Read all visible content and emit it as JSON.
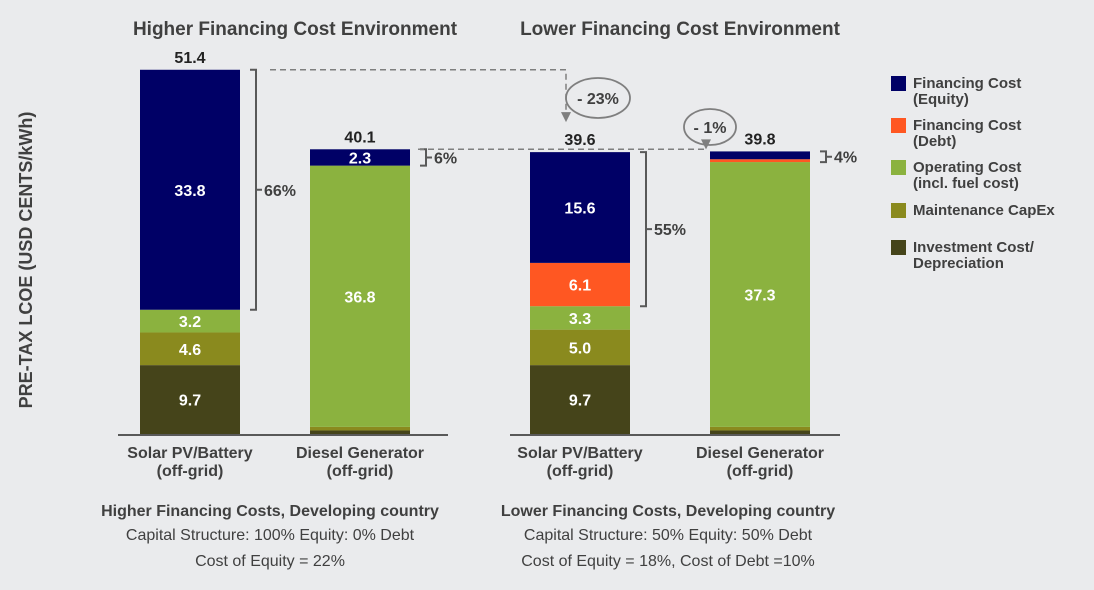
{
  "chart_data": {
    "type": "bar",
    "stacked": true,
    "ylabel": "PRE-TAX LCOE (USD CENTS/kWh)",
    "ylim": [
      0,
      55
    ],
    "grid": false,
    "legend_position": "right",
    "legend": [
      {
        "key": "equity",
        "label": [
          "Financing Cost",
          "(Equity)"
        ],
        "color": "#000066"
      },
      {
        "key": "debt",
        "label": [
          "Financing Cost",
          "(Debt)"
        ],
        "color": "#ff5722"
      },
      {
        "key": "operating",
        "label": [
          "Operating Cost",
          "(incl. fuel cost)"
        ],
        "color": "#8bb23f"
      },
      {
        "key": "maintenance",
        "label": [
          "Maintenance CapEx"
        ],
        "color": "#8a8a1e"
      },
      {
        "key": "investment",
        "label": [
          "Investment Cost/",
          "Depreciation"
        ],
        "color": "#45441a"
      }
    ],
    "panels": [
      {
        "title": "Higher Financing Cost Environment",
        "notes": {
          "heading": "Higher Financing Costs, Developing country",
          "lines": [
            "Capital Structure: 100% Equity: 0% Debt",
            "Cost of Equity = 22%"
          ]
        },
        "bars": [
          {
            "category": [
              "Solar PV/Battery",
              "(off-grid)"
            ],
            "total": 51.4,
            "segments": {
              "investment": 9.7,
              "maintenance": 4.6,
              "operating": 3.2,
              "debt": 0,
              "equity": 33.8
            },
            "labels": {
              "investment": "9.7",
              "maintenance": "4.6",
              "operating": "3.2",
              "equity": "33.8"
            },
            "financing_share": "66%"
          },
          {
            "category": [
              "Diesel Generator",
              "(off-grid)"
            ],
            "total": 40.1,
            "segments": {
              "investment": 0.5,
              "maintenance": 0.5,
              "operating": 36.8,
              "debt": 0,
              "equity": 2.3
            },
            "labels": {
              "operating": "36.8",
              "equity": "2.3"
            },
            "financing_share": "6%"
          }
        ]
      },
      {
        "title": "Lower Financing Cost Environment",
        "notes": {
          "heading": "Lower Financing Costs, Developing country",
          "lines": [
            "Capital Structure: 50% Equity: 50% Debt",
            "Cost of Equity = 18%,  Cost of Debt =10%"
          ]
        },
        "bars": [
          {
            "category": [
              "Solar PV/Battery",
              "(off-grid)"
            ],
            "total": 39.6,
            "segments": {
              "investment": 9.7,
              "maintenance": 5.0,
              "operating": 3.3,
              "debt": 6.1,
              "equity": 15.6
            },
            "labels": {
              "investment": "9.7",
              "maintenance": "5.0",
              "operating": "3.3",
              "debt": "6.1",
              "equity": "15.6"
            },
            "financing_share": "55%"
          },
          {
            "category": [
              "Diesel Generator",
              "(off-grid)"
            ],
            "total": 39.8,
            "segments": {
              "investment": 0.5,
              "maintenance": 0.5,
              "operating": 37.3,
              "debt": 0.4,
              "equity": 1.1
            },
            "labels": {
              "operating": "37.3"
            },
            "financing_share": "4%"
          }
        ]
      }
    ],
    "annotations": [
      {
        "from": "Higher / Solar PV/Battery",
        "to": "Lower / Solar PV/Battery",
        "text": "- 23%"
      },
      {
        "from": "Higher / Diesel Generator",
        "to": "Lower / Diesel Generator",
        "text": "- 1%"
      }
    ]
  }
}
